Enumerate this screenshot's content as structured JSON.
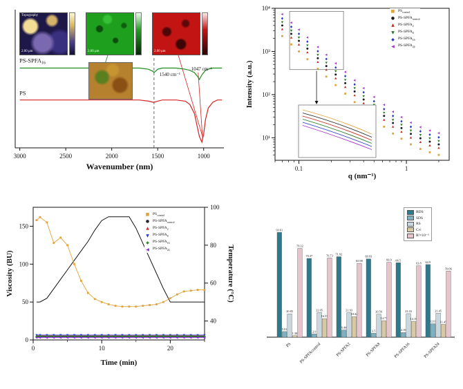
{
  "panel_ftir": {
    "insets": [
      {
        "title": "Topography",
        "scale": "2.00 μm"
      },
      {
        "title": "",
        "scale": "2.00 μm"
      },
      {
        "title": "",
        "scale": "2.00 μm"
      },
      {
        "title": ""
      }
    ]
  },
  "chart_data": [
    {
      "id": "ftir",
      "type": "line",
      "xlabel": "Wavenumber (nm)",
      "xticks": [
        3000,
        2500,
        2000,
        1500,
        1000
      ],
      "xlim": [
        3050,
        780
      ],
      "dashed_guide_x": 1540,
      "annotations": [
        {
          "text": "1540 cm⁻¹",
          "wavenumber": 1540
        },
        {
          "text": "1047 cm⁻¹",
          "wavenumber": 1047
        }
      ],
      "sample_labels": [
        "PS-SPFA_16",
        "PS"
      ],
      "x": [
        3000,
        2800,
        2600,
        2400,
        2200,
        2000,
        1900,
        1800,
        1700,
        1600,
        1550,
        1540,
        1500,
        1450,
        1400,
        1300,
        1200,
        1150,
        1100,
        1060,
        1047,
        1020,
        1000,
        980,
        950,
        900,
        850,
        800
      ],
      "series": [
        {
          "name": "PS-SPFA_16",
          "color": "#1d8a1d",
          "values": [
            0.7,
            0.7,
            0.7,
            0.7,
            0.7,
            0.7,
            0.7,
            0.7,
            0.7,
            0.69,
            0.67,
            0.66,
            0.69,
            0.7,
            0.7,
            0.7,
            0.69,
            0.68,
            0.66,
            0.62,
            0.6,
            0.64,
            0.66,
            0.68,
            0.69,
            0.7,
            0.7,
            0.7
          ]
        },
        {
          "name": "PS",
          "color": "#d42020",
          "values": [
            0.42,
            0.42,
            0.42,
            0.42,
            0.42,
            0.42,
            0.42,
            0.42,
            0.42,
            0.41,
            0.4,
            0.4,
            0.41,
            0.42,
            0.42,
            0.42,
            0.41,
            0.38,
            0.3,
            0.15,
            0.1,
            0.05,
            0.12,
            0.25,
            0.35,
            0.4,
            0.42,
            0.42
          ]
        }
      ]
    },
    {
      "id": "saxs",
      "type": "scatter",
      "xlabel": "q (nm⁻¹)",
      "ylabel": "Intensity (a.u.)",
      "xscale": "log",
      "yscale": "log",
      "xticks": [
        0.1,
        1
      ],
      "xtick_labels": [
        "0.1",
        "1"
      ],
      "ytick_values": [
        10,
        100,
        1000,
        10000
      ],
      "ytick_labels": [
        "10¹",
        "10²",
        "10³",
        "10⁴"
      ],
      "q": [
        0.07,
        0.085,
        0.1,
        0.12,
        0.15,
        0.18,
        0.22,
        0.27,
        0.33,
        0.4,
        0.5,
        0.62,
        0.75,
        0.9,
        1.1,
        1.35,
        1.65,
        2.0
      ],
      "series": [
        {
          "name": "PS_control",
          "color": "#E2A33C",
          "marker": "square",
          "values": [
            2271,
            1453,
            1001,
            660,
            396,
            261,
            166,
            105,
            67,
            44,
            28,
            18,
            12.5,
            9.5,
            7,
            5.5,
            4.6,
            4
          ]
        },
        {
          "name": "PS-SPFA_control",
          "color": "#1c1c1c",
          "marker": "circle",
          "values": [
            3997,
            2557,
            1761,
            1161,
            696,
            459,
            291,
            184,
            118,
            77,
            48,
            32,
            22,
            16.7,
            12.3,
            9.7,
            8.1,
            7
          ]
        },
        {
          "name": "PS-SPFA_2",
          "color": "#c2281e",
          "marker": "triangle-up",
          "values": [
            3270,
            2092,
            1441,
            950,
            569,
            376,
            238,
            150,
            96,
            63,
            40,
            26,
            18,
            13.7,
            10,
            7.9,
            6.6,
            5.8
          ]
        },
        {
          "name": "PS-SPFA_8",
          "color": "#1f7a1f",
          "marker": "triangle-down",
          "values": [
            4769,
            3051,
            2101,
            1385,
            831,
            548,
            348,
            219,
            141,
            92,
            58,
            38,
            26,
            20,
            14.7,
            11.6,
            9.7,
            8.4
          ]
        },
        {
          "name": "PS-SPFA_16",
          "color": "#2535c8",
          "marker": "diamond",
          "values": [
            5814,
            3720,
            2561,
            1688,
            1012,
            668,
            424,
            268,
            172,
            113,
            70,
            46,
            32,
            24,
            17.9,
            14.1,
            11.8,
            10.2
          ]
        },
        {
          "name": "PS-SPFA_24",
          "color": "#a832c8",
          "marker": "triangle-left",
          "values": [
            7267,
            4650,
            3202,
            2110,
            1266,
            835,
            530,
            334,
            214,
            141,
            88,
            58,
            40,
            30,
            22.4,
            17.6,
            14.7,
            12.8
          ]
        }
      ]
    },
    {
      "id": "viscosity",
      "type": "line",
      "xlabel": "Time (min)",
      "ylabel": "Viscosity (BU)",
      "ylabel_right": "Temperature (°C)",
      "xticks": [
        0,
        10,
        20
      ],
      "yticks": [
        0,
        50,
        100,
        150
      ],
      "yticks_right": [
        40,
        60,
        80,
        100
      ],
      "time": [
        0.5,
        1,
        2,
        3,
        4,
        5,
        6,
        7,
        8,
        9,
        10,
        11,
        12,
        13,
        14,
        15,
        16,
        17,
        18,
        19,
        20,
        21,
        22,
        23,
        24,
        25
      ],
      "series": [
        {
          "name": "PS_control",
          "color": "#E2A33C",
          "marker": "square",
          "values": [
            158,
            162,
            155,
            128,
            135,
            125,
            100,
            78,
            62,
            54,
            50,
            47,
            45,
            44,
            44,
            44,
            45,
            46,
            47,
            50,
            55,
            60,
            64,
            65,
            66,
            66
          ]
        },
        {
          "name": "PS-SPFA_control",
          "color": "#23262e",
          "marker": "circle",
          "constant": 4
        },
        {
          "name": "PS-SPFA_2",
          "color": "#d03030",
          "marker": "triangle-up",
          "constant": 5.5
        },
        {
          "name": "PS-SPFA_8",
          "color": "#2a3bd0",
          "marker": "triangle-down",
          "constant": 6.5
        },
        {
          "name": "PS-SPFA_16",
          "color": "#2e8b2e",
          "marker": "diamond",
          "constant": 5
        },
        {
          "name": "PS-SPFA_24",
          "color": "#8a2be2",
          "marker": "triangle-left",
          "constant": 3
        }
      ],
      "temperature": {
        "color": "#111111",
        "values": [
          50,
          50,
          52,
          57,
          62,
          67,
          72,
          77,
          82,
          88,
          93,
          95,
          95,
          95,
          95,
          89,
          81,
          73,
          65,
          57,
          50,
          50,
          50,
          50,
          50,
          50
        ]
      }
    },
    {
      "id": "digestibility",
      "type": "bar",
      "categories": [
        "PS",
        "PS-SPFAcontrol",
        "PS-SPFA2",
        "PS-SPFA8",
        "PS-SPFA16",
        "PS-SPFA24"
      ],
      "series": [
        {
          "name": "RDS",
          "color": "#2E7A8C",
          "values": [
            93.61,
            70.37,
            71.92,
            69.93,
            66.5,
            64.9
          ]
        },
        {
          "name": "SDS",
          "color": "#7FB0BF",
          "values": [
            5.01,
            2.9,
            6.44,
            3.5,
            4.19,
            12.03
          ]
        },
        {
          "name": "RS",
          "color": "#C9D8DE",
          "values": [
            20.85,
            22.05,
            21.93,
            20.56,
            21.03,
            21.45
          ]
        },
        {
          "name": "C∞",
          "color": "#D9C9A3",
          "values": [
            1.38,
            16.57,
            18.42,
            14.77,
            14.19,
            11.45
          ]
        },
        {
          "name": "R²×10⁻³",
          "color": "#E7C3CB",
          "values": [
            79.32,
            70.73,
            65.98,
            66.9,
            63.8,
            59.06
          ]
        }
      ]
    }
  ]
}
